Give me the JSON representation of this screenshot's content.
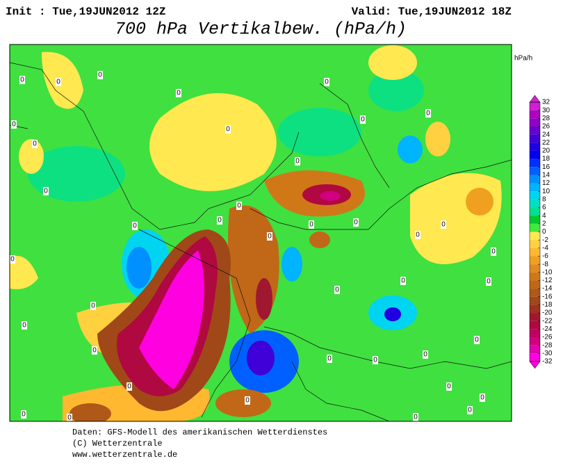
{
  "header": {
    "init": "Init : Tue,19JUN2012 12Z",
    "valid": "Valid: Tue,19JUN2012 18Z",
    "title": "700 hPa Vertikalbew. (hPa/h)"
  },
  "colorbar": {
    "unit": "hPa/h",
    "ticks": [
      32,
      30,
      28,
      26,
      24,
      22,
      20,
      18,
      16,
      14,
      12,
      10,
      8,
      6,
      4,
      2,
      0,
      -2,
      -4,
      -6,
      -8,
      -10,
      -12,
      -14,
      -16,
      -18,
      -20,
      -22,
      -24,
      -26,
      -28,
      -30,
      -32
    ],
    "colors": [
      "#d020d0",
      "#b000c0",
      "#9000c8",
      "#6800d0",
      "#4000d8",
      "#2000e0",
      "#0000f0",
      "#0030ff",
      "#0060ff",
      "#0090ff",
      "#00b4ff",
      "#00d4f0",
      "#00e0c0",
      "#00e090",
      "#00c830",
      "#40e840",
      "#ffe850",
      "#ffd040",
      "#ffb830",
      "#f0a020",
      "#e08a20",
      "#d07818",
      "#c06818",
      "#b05818",
      "#a04818",
      "#a03020",
      "#a01830",
      "#b00840",
      "#c00060",
      "#d00080",
      "#e000b0",
      "#ff00e0"
    ]
  },
  "map": {
    "contour_labels": [
      "0",
      "0",
      "0",
      "0",
      "0",
      "0",
      "0",
      "0",
      "0",
      "0",
      "0",
      "0",
      "0",
      "0",
      "0",
      "0",
      "0",
      "0",
      "0",
      "0",
      "0",
      "0",
      "0",
      "0",
      "0",
      "0",
      "0",
      "0",
      "0",
      "0",
      "0",
      "0",
      "0",
      "0",
      "0",
      "0",
      "0",
      "0",
      "0",
      "0"
    ]
  },
  "footer": {
    "lines": [
      "Daten: GFS-Modell des amerikanischen Wetterdienstes",
      "(C) Wetterzentrale",
      "www.wetterzentrale.de"
    ]
  }
}
